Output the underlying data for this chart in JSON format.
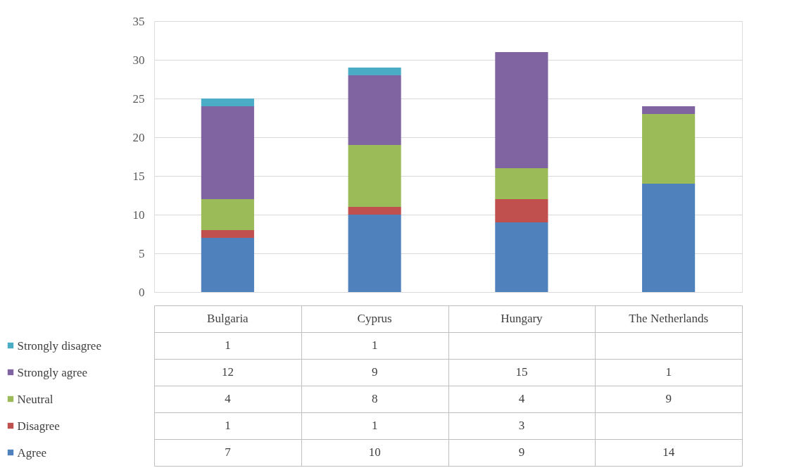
{
  "chart_data": {
    "type": "bar",
    "stacked": true,
    "categories": [
      "Bulgaria",
      "Cyprus",
      "Hungary",
      "The Netherlands"
    ],
    "series": [
      {
        "name": "Agree",
        "color": "#4f81bd",
        "values": [
          7,
          10,
          9,
          14
        ]
      },
      {
        "name": "Disagree",
        "color": "#c0504d",
        "values": [
          1,
          1,
          3,
          null
        ]
      },
      {
        "name": "Neutral",
        "color": "#9bbb59",
        "values": [
          4,
          8,
          4,
          9
        ]
      },
      {
        "name": "Strongly agree",
        "color": "#8064a2",
        "values": [
          12,
          9,
          15,
          1
        ]
      },
      {
        "name": "Strongly disagree",
        "color": "#4bacc6",
        "values": [
          1,
          1,
          null,
          null
        ]
      }
    ],
    "ylim": [
      0,
      35
    ],
    "yticks": [
      0,
      5,
      10,
      15,
      20,
      25,
      30,
      35
    ],
    "grid": "y",
    "legend": "bottom",
    "data_labels": true
  }
}
